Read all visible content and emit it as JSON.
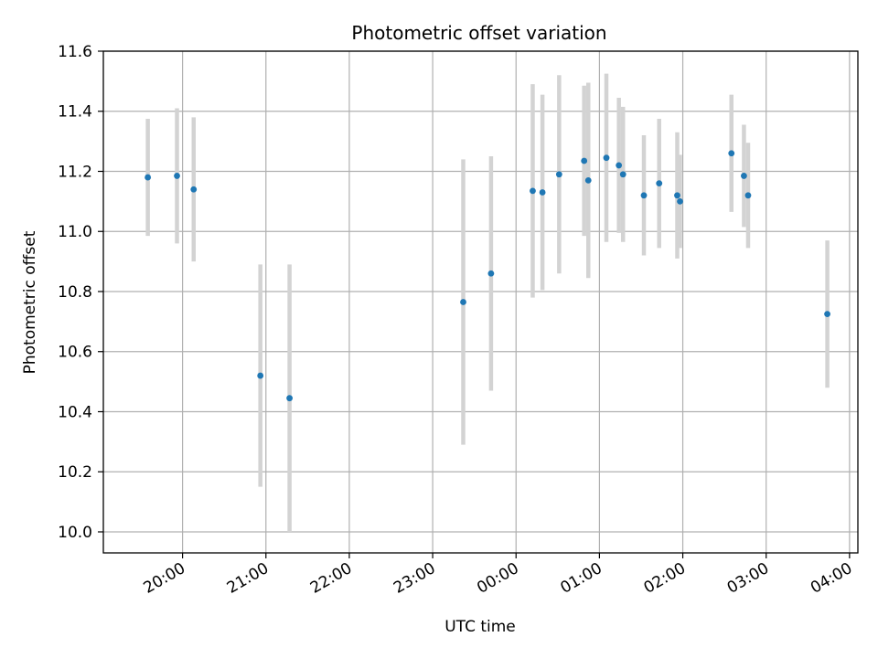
{
  "chart_data": {
    "type": "scatter",
    "title": "Photometric offset variation",
    "xlabel": "UTC time",
    "ylabel": "Photometric offset",
    "x_ticks": [
      "20:00",
      "21:00",
      "22:00",
      "23:00",
      "00:00",
      "01:00",
      "02:00",
      "03:00",
      "04:00"
    ],
    "x_tick_hours": [
      20,
      21,
      22,
      23,
      24,
      25,
      26,
      27,
      28
    ],
    "xlim_hours": [
      19.05,
      28.1
    ],
    "ylim": [
      9.93,
      11.6
    ],
    "y_ticks": [
      10.0,
      10.2,
      10.4,
      10.6,
      10.8,
      11.0,
      11.2,
      11.4,
      11.6
    ],
    "grid": true,
    "colors": {
      "point": "#1f77b4",
      "errorbar": "#d3d3d3",
      "grid": "#b0b0b0"
    },
    "points": [
      {
        "t": "19:35",
        "y": 11.18,
        "err": 0.195
      },
      {
        "t": "19:56",
        "y": 11.185,
        "err": 0.225
      },
      {
        "t": "20:08",
        "y": 11.14,
        "err": 0.24
      },
      {
        "t": "20:56",
        "y": 10.52,
        "err": 0.37
      },
      {
        "t": "21:17",
        "y": 10.445,
        "err": 0.445
      },
      {
        "t": "23:22",
        "y": 10.765,
        "err": 0.475
      },
      {
        "t": "23:42",
        "y": 10.86,
        "err": 0.39
      },
      {
        "t": "00:12",
        "y": 11.135,
        "err": 0.355
      },
      {
        "t": "00:19",
        "y": 11.13,
        "err": 0.325
      },
      {
        "t": "00:31",
        "y": 11.19,
        "err": 0.33
      },
      {
        "t": "00:49",
        "y": 11.235,
        "err": 0.25
      },
      {
        "t": "00:52",
        "y": 11.17,
        "err": 0.325
      },
      {
        "t": "01:05",
        "y": 11.245,
        "err": 0.28
      },
      {
        "t": "01:14",
        "y": 11.22,
        "err": 0.225
      },
      {
        "t": "01:17",
        "y": 11.19,
        "err": 0.225
      },
      {
        "t": "01:32",
        "y": 11.12,
        "err": 0.2
      },
      {
        "t": "01:43",
        "y": 11.16,
        "err": 0.215
      },
      {
        "t": "01:56",
        "y": 11.12,
        "err": 0.21
      },
      {
        "t": "01:58",
        "y": 11.1,
        "err": 0.155
      },
      {
        "t": "02:35",
        "y": 11.26,
        "err": 0.195
      },
      {
        "t": "02:44",
        "y": 11.185,
        "err": 0.17
      },
      {
        "t": "02:47",
        "y": 11.12,
        "err": 0.175
      },
      {
        "t": "03:44",
        "y": 10.725,
        "err": 0.245
      }
    ]
  }
}
